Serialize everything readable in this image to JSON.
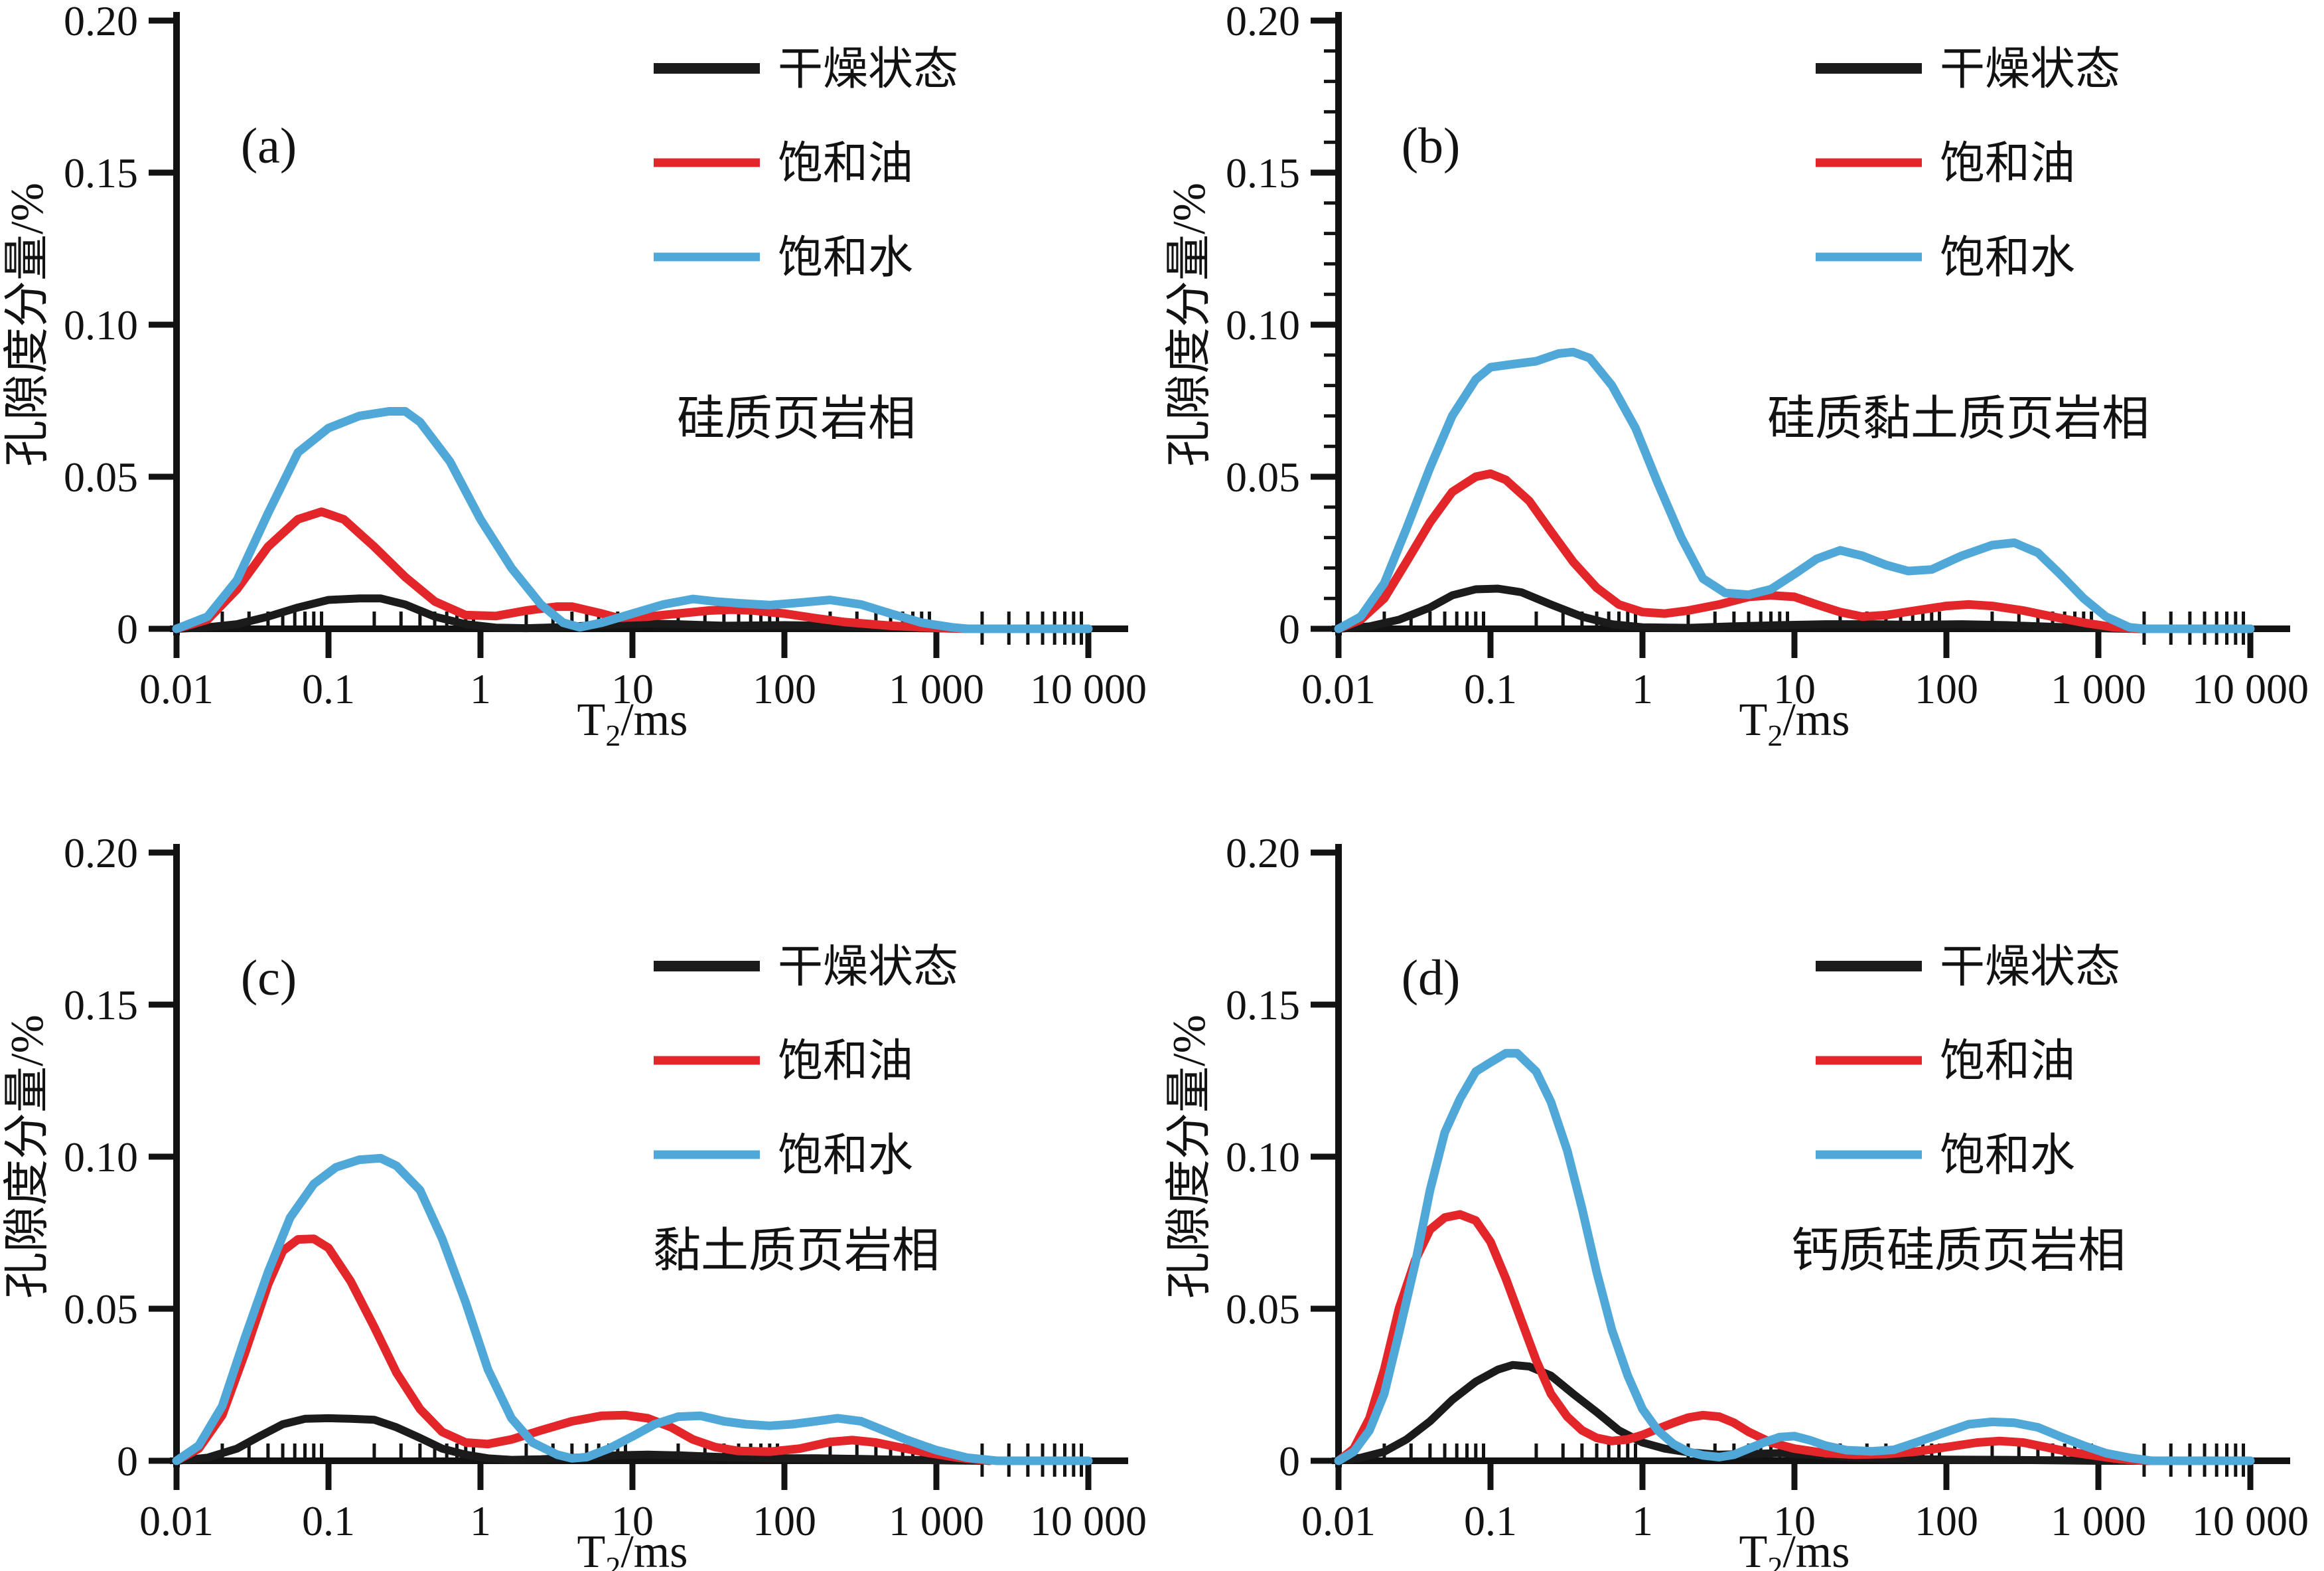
{
  "figure": {
    "background": "#ffffff",
    "ylabel": "孔隙度分量/%",
    "xlabel_parts": {
      "pre": "T",
      "sub": "2",
      "post": "/ms"
    },
    "xtick_labels": [
      "0.01",
      "0.1",
      "1",
      "10",
      "100",
      "1 000",
      "10 000"
    ],
    "ytick_labels": [
      "0",
      "0.05",
      "0.10",
      "0.15",
      "0.20"
    ],
    "colors": {
      "dry": "#1b1b1b",
      "oil": "#e3262a",
      "water": "#50a8d8"
    },
    "legend": {
      "entries": [
        {
          "key": "dry",
          "label": "干燥状态"
        },
        {
          "key": "oil",
          "label": "饱和油"
        },
        {
          "key": "water",
          "label": "饱和水"
        }
      ]
    }
  },
  "chart_data": [
    {
      "type": "line",
      "panel_label": "(a)",
      "title": "硅质页岩相",
      "xlabel": "T2/ms",
      "ylabel": "孔隙度分量/%",
      "x_scale": "log",
      "xlim": [
        0.01,
        10000
      ],
      "ylim": [
        0,
        0.2
      ],
      "xticks": [
        0.01,
        0.1,
        1,
        10,
        100,
        1000,
        10000
      ],
      "yticks": [
        0,
        0.05,
        0.1,
        0.15,
        0.2
      ],
      "y_minor_ticks": false,
      "grid": false,
      "legend_position": "top-right-inside",
      "series": [
        {
          "key": "dry",
          "name": "干燥状态",
          "x": [
            0.01,
            0.016,
            0.025,
            0.04,
            0.063,
            0.1,
            0.16,
            0.22,
            0.32,
            0.5,
            0.8,
            1.26,
            2,
            3.2,
            5,
            8,
            12.6,
            20,
            40,
            100,
            200,
            400,
            800,
            1600
          ],
          "y": [
            0,
            0.0005,
            0.0015,
            0.004,
            0.007,
            0.0095,
            0.01,
            0.01,
            0.008,
            0.004,
            0.0015,
            0.0004,
            0.0002,
            0.0005,
            0.001,
            0.0015,
            0.0017,
            0.0015,
            0.001,
            0.0012,
            0.001,
            0.0005,
            0.0002,
            0
          ]
        },
        {
          "key": "oil",
          "name": "饱和油",
          "x": [
            0.01,
            0.016,
            0.025,
            0.04,
            0.063,
            0.09,
            0.126,
            0.2,
            0.32,
            0.5,
            0.8,
            1.26,
            2,
            3.2,
            4,
            6.3,
            8,
            12.6,
            20,
            32,
            45,
            63,
            100,
            160,
            250,
            500,
            1000,
            1600
          ],
          "y": [
            0,
            0.003,
            0.013,
            0.027,
            0.036,
            0.0385,
            0.036,
            0.027,
            0.017,
            0.009,
            0.0045,
            0.0042,
            0.006,
            0.0073,
            0.0073,
            0.005,
            0.0036,
            0.004,
            0.005,
            0.006,
            0.0063,
            0.006,
            0.005,
            0.0035,
            0.0022,
            0.001,
            0.0003,
            0
          ]
        },
        {
          "key": "water",
          "name": "饱和水",
          "x": [
            0.01,
            0.016,
            0.025,
            0.04,
            0.063,
            0.1,
            0.16,
            0.25,
            0.32,
            0.4,
            0.63,
            1,
            1.6,
            2.5,
            3.5,
            4.5,
            6.3,
            10,
            16,
            25,
            35,
            50,
            80,
            126,
            200,
            320,
            500,
            800,
            1260,
            1600,
            10000
          ],
          "y": [
            0,
            0.004,
            0.016,
            0.038,
            0.058,
            0.066,
            0.07,
            0.0715,
            0.0715,
            0.068,
            0.055,
            0.036,
            0.02,
            0.008,
            0.002,
            0.0005,
            0.002,
            0.005,
            0.008,
            0.0098,
            0.009,
            0.0084,
            0.0078,
            0.0086,
            0.0095,
            0.008,
            0.005,
            0.002,
            0.0005,
            0,
            0
          ]
        }
      ]
    },
    {
      "type": "line",
      "panel_label": "(b)",
      "title": "硅质黏土质页岩相",
      "xlabel": "T2/ms",
      "ylabel": "孔隙度分量/%",
      "x_scale": "log",
      "xlim": [
        0.01,
        10000
      ],
      "ylim": [
        0,
        0.2
      ],
      "xticks": [
        0.01,
        0.1,
        1,
        10,
        100,
        1000,
        10000
      ],
      "yticks": [
        0,
        0.05,
        0.1,
        0.15,
        0.2
      ],
      "y_minor_ticks": true,
      "grid": false,
      "legend_position": "top-right-inside",
      "series": [
        {
          "key": "dry",
          "name": "干燥状态",
          "x": [
            0.01,
            0.016,
            0.025,
            0.04,
            0.056,
            0.08,
            0.112,
            0.16,
            0.25,
            0.4,
            0.63,
            1,
            2,
            4,
            8,
            16,
            32,
            63,
            126,
            250,
            400,
            800,
            1600
          ],
          "y": [
            0,
            0.0008,
            0.003,
            0.007,
            0.011,
            0.013,
            0.0132,
            0.012,
            0.008,
            0.004,
            0.0015,
            0.0005,
            0.0003,
            0.0008,
            0.0012,
            0.0015,
            0.0015,
            0.0013,
            0.0015,
            0.0012,
            0.0008,
            0.0003,
            0
          ]
        },
        {
          "key": "oil",
          "name": "饱和油",
          "x": [
            0.01,
            0.014,
            0.02,
            0.028,
            0.04,
            0.056,
            0.08,
            0.1,
            0.126,
            0.18,
            0.25,
            0.35,
            0.5,
            0.7,
            1,
            1.4,
            2,
            3.2,
            5,
            7,
            10,
            14,
            20,
            28,
            40,
            63,
            100,
            140,
            200,
            320,
            500,
            800,
            1260,
            1800,
            10000
          ],
          "y": [
            0,
            0.003,
            0.01,
            0.022,
            0.035,
            0.045,
            0.05,
            0.051,
            0.049,
            0.042,
            0.032,
            0.022,
            0.0135,
            0.008,
            0.0055,
            0.005,
            0.006,
            0.008,
            0.0105,
            0.011,
            0.0105,
            0.008,
            0.0055,
            0.004,
            0.0045,
            0.006,
            0.0075,
            0.008,
            0.0075,
            0.006,
            0.004,
            0.002,
            0.0005,
            0,
            0
          ]
        },
        {
          "key": "water",
          "name": "饱和水",
          "x": [
            0.01,
            0.014,
            0.02,
            0.028,
            0.04,
            0.056,
            0.08,
            0.1,
            0.14,
            0.2,
            0.28,
            0.35,
            0.45,
            0.63,
            0.9,
            1.26,
            1.8,
            2.5,
            3.5,
            5,
            7,
            10,
            14,
            20,
            28,
            40,
            56,
            80,
            126,
            200,
            280,
            400,
            560,
            800,
            1120,
            1600,
            2000,
            10000
          ],
          "y": [
            0,
            0.004,
            0.015,
            0.033,
            0.053,
            0.07,
            0.082,
            0.086,
            0.087,
            0.088,
            0.0905,
            0.091,
            0.089,
            0.08,
            0.066,
            0.048,
            0.03,
            0.0165,
            0.0118,
            0.0112,
            0.013,
            0.018,
            0.023,
            0.0258,
            0.024,
            0.021,
            0.019,
            0.0195,
            0.024,
            0.0275,
            0.0283,
            0.025,
            0.018,
            0.01,
            0.004,
            0.0005,
            0,
            0
          ]
        }
      ]
    },
    {
      "type": "line",
      "panel_label": "(c)",
      "title": "黏土质页岩相",
      "xlabel": "T2/ms",
      "ylabel": "孔隙度分量/%",
      "x_scale": "log",
      "xlim": [
        0.01,
        10000
      ],
      "ylim": [
        0,
        0.2
      ],
      "xticks": [
        0.01,
        0.1,
        1,
        10,
        100,
        1000,
        10000
      ],
      "yticks": [
        0,
        0.05,
        0.1,
        0.15,
        0.2
      ],
      "y_minor_ticks": false,
      "grid": false,
      "legend_position": "top-right-inside",
      "series": [
        {
          "key": "dry",
          "name": "干燥状态",
          "x": [
            0.01,
            0.016,
            0.025,
            0.035,
            0.05,
            0.07,
            0.1,
            0.14,
            0.2,
            0.28,
            0.4,
            0.56,
            0.8,
            1.12,
            1.6,
            2.5,
            5,
            8,
            12.6,
            20,
            40,
            80,
            160,
            320,
            630,
            1260,
            2000
          ],
          "y": [
            0,
            0.001,
            0.004,
            0.008,
            0.012,
            0.0138,
            0.014,
            0.0138,
            0.0135,
            0.011,
            0.0075,
            0.004,
            0.002,
            0.0008,
            0.0003,
            0.0005,
            0.0012,
            0.0018,
            0.002,
            0.0018,
            0.0012,
            0.0008,
            0.0008,
            0.0006,
            0.0003,
            0.0001,
            0
          ]
        },
        {
          "key": "oil",
          "name": "饱和油",
          "x": [
            0.01,
            0.014,
            0.02,
            0.028,
            0.04,
            0.05,
            0.063,
            0.08,
            0.1,
            0.14,
            0.2,
            0.28,
            0.4,
            0.56,
            0.8,
            1.12,
            1.6,
            2.5,
            4,
            6.3,
            9,
            12.6,
            18,
            25,
            35,
            50,
            80,
            126,
            200,
            280,
            400,
            560,
            900,
            1400,
            2240
          ],
          "y": [
            0,
            0.004,
            0.015,
            0.035,
            0.058,
            0.069,
            0.0728,
            0.073,
            0.07,
            0.059,
            0.044,
            0.029,
            0.017,
            0.0095,
            0.006,
            0.0055,
            0.007,
            0.01,
            0.013,
            0.0148,
            0.015,
            0.014,
            0.011,
            0.007,
            0.0045,
            0.0032,
            0.003,
            0.004,
            0.0062,
            0.0068,
            0.006,
            0.0045,
            0.0025,
            0.001,
            0
          ]
        },
        {
          "key": "water",
          "name": "饱和水",
          "x": [
            0.01,
            0.014,
            0.02,
            0.028,
            0.04,
            0.056,
            0.08,
            0.112,
            0.16,
            0.22,
            0.28,
            0.4,
            0.56,
            0.8,
            1.12,
            1.6,
            2.2,
            3.2,
            4,
            5,
            7,
            10,
            14,
            20,
            28,
            40,
            56,
            80,
            112,
            160,
            224,
            320,
            450,
            630,
            1000,
            1600,
            2500,
            10000
          ],
          "y": [
            0,
            0.005,
            0.018,
            0.04,
            0.062,
            0.08,
            0.091,
            0.0965,
            0.099,
            0.0995,
            0.097,
            0.089,
            0.073,
            0.052,
            0.03,
            0.014,
            0.006,
            0.002,
            0.0008,
            0.0012,
            0.004,
            0.008,
            0.012,
            0.0145,
            0.0148,
            0.013,
            0.012,
            0.0115,
            0.012,
            0.013,
            0.014,
            0.013,
            0.01,
            0.007,
            0.0035,
            0.001,
            0,
            0
          ]
        }
      ]
    },
    {
      "type": "line",
      "panel_label": "(d)",
      "title": "钙质硅质页岩相",
      "xlabel": "T2/ms",
      "ylabel": "孔隙度分量/%",
      "x_scale": "log",
      "xlim": [
        0.01,
        10000
      ],
      "ylim": [
        0,
        0.2
      ],
      "xticks": [
        0.01,
        0.1,
        1,
        10,
        100,
        1000,
        10000
      ],
      "yticks": [
        0,
        0.05,
        0.1,
        0.15,
        0.2
      ],
      "y_minor_ticks": false,
      "grid": false,
      "legend_position": "top-right-inside",
      "series": [
        {
          "key": "dry",
          "name": "干燥状态",
          "x": [
            0.01,
            0.014,
            0.02,
            0.028,
            0.04,
            0.056,
            0.08,
            0.112,
            0.14,
            0.18,
            0.25,
            0.35,
            0.5,
            0.7,
            1,
            1.4,
            2,
            3.2,
            5,
            8,
            12.6,
            25,
            50,
            100,
            250,
            630,
            1000,
            2000
          ],
          "y": [
            0,
            0.001,
            0.003,
            0.007,
            0.013,
            0.02,
            0.026,
            0.03,
            0.0315,
            0.031,
            0.028,
            0.022,
            0.016,
            0.01,
            0.006,
            0.004,
            0.0028,
            0.002,
            0.0022,
            0.0025,
            0.002,
            0.001,
            0.0006,
            0.0004,
            0.0003,
            0.0001,
            0,
            0
          ]
        },
        {
          "key": "oil",
          "name": "饱和油",
          "x": [
            0.01,
            0.0126,
            0.016,
            0.02,
            0.025,
            0.032,
            0.04,
            0.05,
            0.063,
            0.08,
            0.1,
            0.126,
            0.16,
            0.2,
            0.25,
            0.32,
            0.4,
            0.5,
            0.63,
            0.8,
            1,
            1.26,
            1.6,
            2,
            2.5,
            3.2,
            4,
            5,
            7,
            10,
            16,
            25,
            40,
            63,
            100,
            160,
            224,
            320,
            450,
            630,
            1000,
            1400,
            2000,
            10000
          ],
          "y": [
            0,
            0.004,
            0.014,
            0.03,
            0.05,
            0.066,
            0.076,
            0.08,
            0.081,
            0.079,
            0.072,
            0.06,
            0.046,
            0.033,
            0.022,
            0.0145,
            0.01,
            0.0075,
            0.0065,
            0.007,
            0.0085,
            0.0105,
            0.0125,
            0.0142,
            0.015,
            0.0145,
            0.0125,
            0.0095,
            0.006,
            0.004,
            0.0025,
            0.002,
            0.0022,
            0.003,
            0.0045,
            0.006,
            0.0065,
            0.006,
            0.0045,
            0.003,
            0.0015,
            0.0005,
            0,
            0
          ]
        },
        {
          "key": "water",
          "name": "饱和水",
          "x": [
            0.01,
            0.0126,
            0.016,
            0.02,
            0.025,
            0.032,
            0.04,
            0.05,
            0.063,
            0.08,
            0.1,
            0.126,
            0.15,
            0.2,
            0.25,
            0.32,
            0.4,
            0.5,
            0.63,
            0.8,
            1,
            1.26,
            1.6,
            2,
            2.5,
            3.2,
            4,
            5,
            6.3,
            8,
            10,
            12.6,
            16,
            22,
            32,
            45,
            63,
            100,
            140,
            200,
            280,
            400,
            560,
            800,
            1120,
            1600,
            2240,
            10000
          ],
          "y": [
            0,
            0.003,
            0.01,
            0.022,
            0.042,
            0.065,
            0.089,
            0.108,
            0.119,
            0.128,
            0.131,
            0.134,
            0.134,
            0.128,
            0.118,
            0.102,
            0.083,
            0.062,
            0.043,
            0.028,
            0.017,
            0.01,
            0.0055,
            0.003,
            0.0018,
            0.0012,
            0.002,
            0.004,
            0.006,
            0.0078,
            0.0081,
            0.0068,
            0.005,
            0.0035,
            0.0031,
            0.0036,
            0.006,
            0.0095,
            0.012,
            0.0128,
            0.0125,
            0.011,
            0.008,
            0.005,
            0.0025,
            0.001,
            0,
            0
          ]
        }
      ]
    }
  ]
}
